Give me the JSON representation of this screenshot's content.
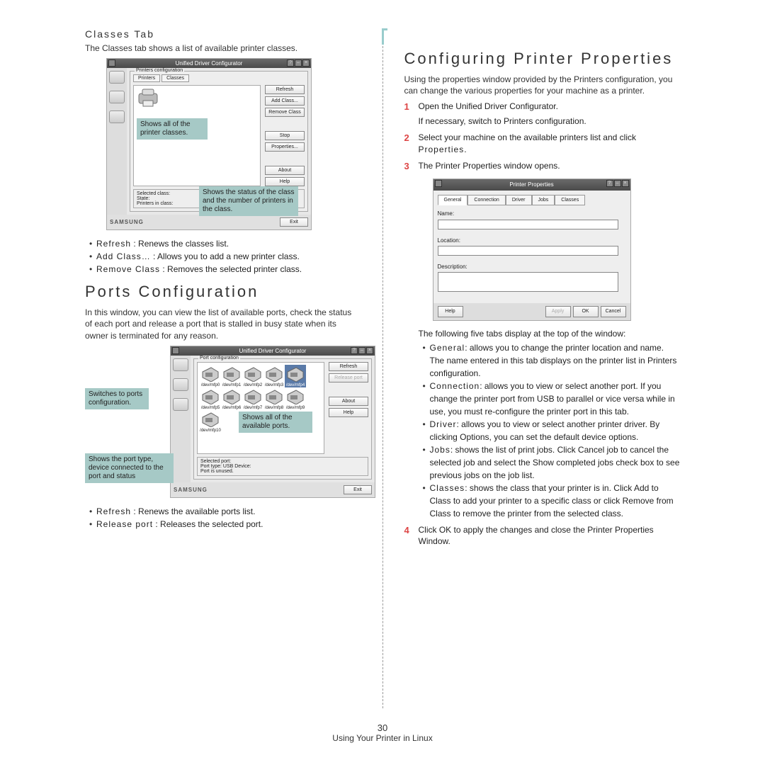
{
  "left": {
    "classes_tab_heading": "Classes Tab",
    "classes_intro": "The Classes tab shows a list of available printer classes.",
    "classes_screenshot": {
      "title": "Unified Driver Configurator",
      "tabs": [
        "Printers",
        "Classes"
      ],
      "buttons": [
        "Refresh",
        "Add Class...",
        "Remove Class",
        "Stop",
        "Properties...",
        "About",
        "Help"
      ],
      "status_label": "Selected class:",
      "status_lines": [
        "State:",
        "Printers in class:"
      ],
      "exit": "Exit",
      "logo": "SAMSUNG",
      "callout1": "Shows all of the printer classes.",
      "callout2": "Shows the status of the class and the number of printers in the class."
    },
    "classes_bullets": [
      {
        "b": "Refresh",
        "t": " : Renews the classes list."
      },
      {
        "b": "Add Class…",
        "t": " : Allows you to add a new printer class."
      },
      {
        "b": "Remove Class",
        "t": " : Removes the selected printer class."
      }
    ],
    "ports_heading": "Ports Configuration",
    "ports_intro": "In this window, you can view the list of available ports, check the status of each port and release a port that is stalled in busy state when its owner is terminated for any reason.",
    "ports_screenshot": {
      "title": "Unified Driver Configurator",
      "group": "Port configuration",
      "buttons": [
        "Refresh",
        "Release port",
        "About",
        "Help"
      ],
      "port_labels": [
        "/dev/mfp0",
        "/dev/mfp1",
        "/dev/mfp2",
        "/dev/mfp3",
        "/dev/mfp4",
        "/dev/mfp5",
        "/dev/mfp6",
        "/dev/mfp7",
        "/dev/mfp8",
        "/dev/mfp9",
        "/dev/mfp10"
      ],
      "status_label": "Selected port:",
      "status_lines": [
        "Port type: USB  Device:",
        "Port is unused."
      ],
      "exit": "Exit",
      "logo": "SAMSUNG",
      "callout_switch": "Switches to ports configuration.",
      "callout_ports": "Shows all of the available ports.",
      "callout_type": "Shows the port type, device connected to the port and status"
    },
    "ports_bullets": [
      {
        "b": "Refresh",
        "t": " : Renews the available ports list."
      },
      {
        "b": "Release port",
        "t": " : Releases the selected port."
      }
    ]
  },
  "right": {
    "heading": "Configuring Printer Properties",
    "intro": "Using the properties window provided by the Printers configuration, you can change the various properties for your machine as a printer.",
    "step1": "Open the Unified Driver Configurator.",
    "step1_sub": "If necessary, switch to Printers configuration.",
    "step2a": "Select your machine on the available printers list and click ",
    "step2b": "Properties",
    "step2c": ".",
    "step3": "The Printer Properties window opens.",
    "pp": {
      "title": "Printer Properties",
      "tabs": [
        "General",
        "Connection",
        "Driver",
        "Jobs",
        "Classes"
      ],
      "name_label": "Name:",
      "location_label": "Location:",
      "description_label": "Description:",
      "help": "Help",
      "apply": "Apply",
      "ok": "OK",
      "cancel": "Cancel"
    },
    "tabs_intro": "The following five tabs display at the top of the window:",
    "tabs": [
      {
        "b": "General",
        "t": ": allows you to change the printer location and name. The name entered in this tab displays on the printer list in Printers configuration."
      },
      {
        "b": "Connection",
        "t": ": allows you to view or select another port. If you change the printer port from USB to parallel or vice versa while in use, you must re-configure the printer port in this tab."
      },
      {
        "b": "Driver",
        "t": ": allows you to view or select another printer driver. By clicking Options, you can set the default device options."
      },
      {
        "b": "Jobs",
        "t": ": shows the list of print jobs. Click Cancel job to cancel the selected job and select the Show completed jobs check box to see previous jobs on the job list."
      },
      {
        "b": "Classes",
        "t": ": shows the class that your printer is in. Click Add to Class to add your printer to a specific class or click Remove from Class to remove the printer from the selected class."
      }
    ],
    "step4a": "Click OK to apply the changes and close the Printer Properties Window."
  },
  "footer": {
    "page": "30",
    "section": "Using Your Printer in Linux"
  }
}
